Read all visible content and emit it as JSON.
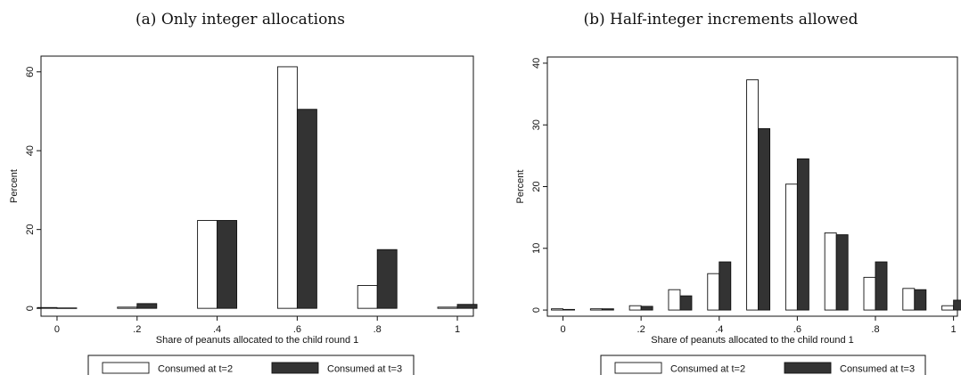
{
  "chart_data": [
    {
      "type": "bar",
      "caption": "(a) Only integer allocations",
      "xlabel": "Share of peanuts allocated to the child round 1",
      "ylabel": "Percent",
      "x_ticks": [
        "0",
        ".2",
        ".4",
        ".6",
        ".8",
        "1"
      ],
      "x_tick_values": [
        0,
        0.2,
        0.4,
        0.6,
        0.8,
        1.0
      ],
      "y_ticks": [
        "0",
        "20",
        "40",
        "60"
      ],
      "y_tick_values": [
        0,
        20,
        40,
        60
      ],
      "xlim": [
        -0.04,
        1.04
      ],
      "ylim": [
        -2,
        64
      ],
      "grid": false,
      "legend_position": "bottom",
      "x": [
        0,
        0.2,
        0.4,
        0.6,
        0.8,
        1.0
      ],
      "series": [
        {
          "name": "Consumed at t=2",
          "color": "#ffffff",
          "values": [
            0.2,
            0.3,
            22.3,
            61.3,
            5.8,
            0.3
          ]
        },
        {
          "name": "Consumed at t=3",
          "color": "#333333",
          "values": [
            0.1,
            1.2,
            22.3,
            50.5,
            14.9,
            1.0
          ]
        }
      ]
    },
    {
      "type": "bar",
      "caption": "(b) Half-integer increments allowed",
      "xlabel": "Share of peanuts allocated to the child round 1",
      "ylabel": "Percent",
      "x_ticks": [
        "0",
        ".2",
        ".4",
        ".6",
        ".8",
        "1"
      ],
      "x_tick_values": [
        0,
        0.2,
        0.4,
        0.6,
        0.8,
        1.0
      ],
      "y_ticks": [
        "0",
        "10",
        "20",
        "30",
        "40"
      ],
      "y_tick_values": [
        0,
        10,
        20,
        30,
        40
      ],
      "xlim": [
        -0.04,
        1.01
      ],
      "ylim": [
        -1,
        41
      ],
      "grid": false,
      "legend_position": "bottom",
      "x": [
        0,
        0.1,
        0.2,
        0.3,
        0.4,
        0.5,
        0.6,
        0.7,
        0.8,
        0.9,
        1.0
      ],
      "series": [
        {
          "name": "Consumed at t=2",
          "color": "#ffffff",
          "values": [
            0.2,
            0.2,
            0.7,
            3.3,
            5.9,
            37.3,
            20.4,
            12.5,
            5.3,
            3.5,
            0.7
          ]
        },
        {
          "name": "Consumed at t=3",
          "color": "#333333",
          "values": [
            0.1,
            0.2,
            0.6,
            2.3,
            7.8,
            29.4,
            24.5,
            12.2,
            7.8,
            3.3,
            1.6
          ]
        }
      ]
    }
  ]
}
